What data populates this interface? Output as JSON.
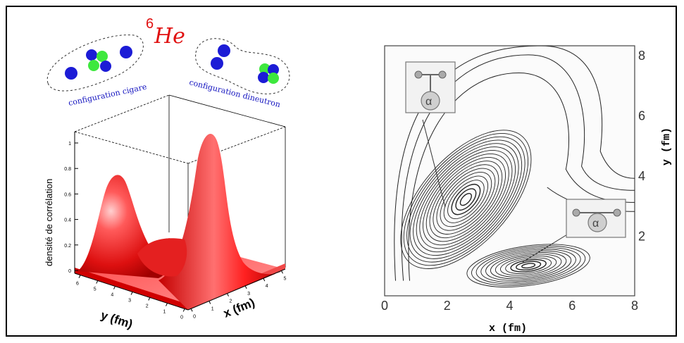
{
  "title": {
    "mass": "6",
    "symbol": "He"
  },
  "configs": {
    "cigar": "configuration cigare",
    "dineutron": "configuration dineutron"
  },
  "left_plot": {
    "zlabel": "densité de corrélation",
    "xlabel": "x (fm)",
    "ylabel": "y (fm)",
    "z_ticks": [
      "0",
      "0.2",
      "0.4",
      "0.6",
      "0.8",
      "1"
    ],
    "x_ticks": [
      "0",
      "1",
      "2",
      "3",
      "4",
      "5"
    ],
    "y_ticks": [
      "0",
      "1",
      "2",
      "3",
      "4",
      "5",
      "6"
    ]
  },
  "right_plot": {
    "xlabel": "x (fm)",
    "ylabel": "y (fm)",
    "x_ticks": [
      "0",
      "2",
      "4",
      "6",
      "8"
    ],
    "y_ticks": [
      "2",
      "4",
      "6",
      "8"
    ],
    "alpha": "α"
  },
  "colors": {
    "neutron": "#1c1cd6",
    "proton": "#3ee83e",
    "surface": "#e01010",
    "label_blue": "#1515c0",
    "title_red": "#e01010"
  }
}
